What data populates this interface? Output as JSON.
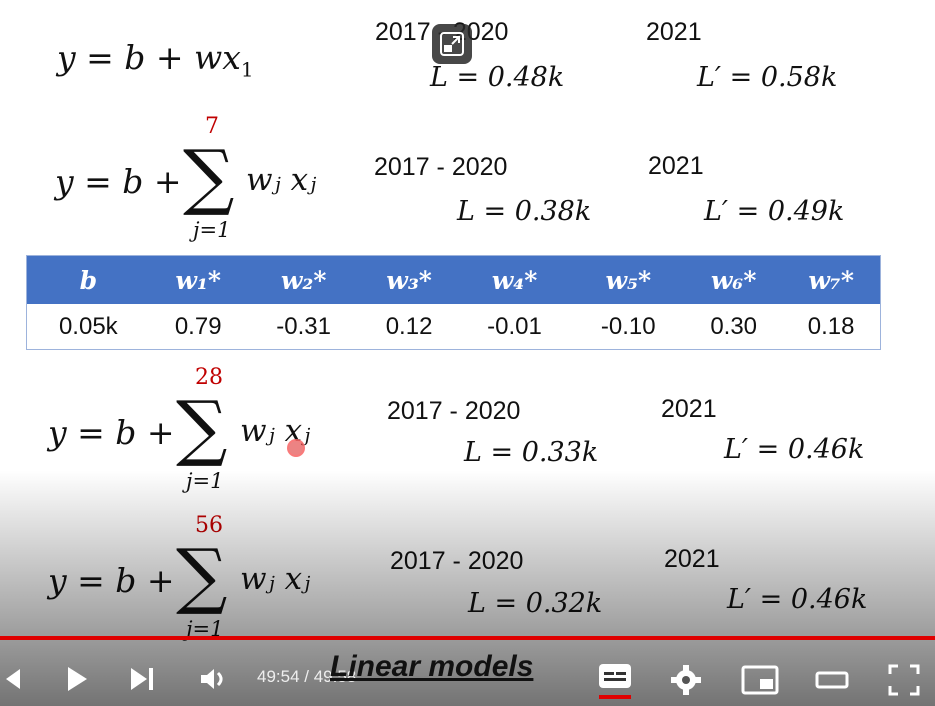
{
  "slide": {
    "models": [
      {
        "equation_lhs": "y = b + ",
        "equation_tail": "w",
        "equation_x": "x",
        "equation_sub": "1",
        "train_label": "2017 - 2020",
        "train_loss": "L = 0.48k",
        "test_label": "2021",
        "test_loss": "L′ = 0.58k"
      },
      {
        "equation_lhs": "y = b + ",
        "sum_upper": "7",
        "sum_lower": "j=1",
        "sum_term": "wⱼ xⱼ",
        "train_label": "2017 - 2020",
        "train_loss": "L = 0.38k",
        "test_label": "2021",
        "test_loss": "L′ = 0.49k"
      },
      {
        "equation_lhs": "y = b + ",
        "sum_upper": "28",
        "sum_lower": "j=1",
        "sum_term": "wⱼ xⱼ",
        "train_label": "2017 - 2020",
        "train_loss": "L = 0.33k",
        "test_label": "2021",
        "test_loss": "L′ = 0.46k"
      },
      {
        "equation_lhs": "y = b + ",
        "sum_upper": "56",
        "sum_lower": "j=1",
        "sum_term": "wⱼ xⱼ",
        "train_label": "2017 - 2020",
        "train_loss": "L = 0.32k",
        "test_label": "2021",
        "test_loss": "L′ = 0.46k"
      }
    ],
    "weights_table": {
      "headers": [
        "b",
        "w₁*",
        "w₂*",
        "w₃*",
        "w₄*",
        "w₅*",
        "w₆*",
        "w₇*"
      ],
      "values": [
        "0.05k",
        "0.79",
        "-0.31",
        "0.12",
        "-0.01",
        "-0.10",
        "0.30",
        "0.18"
      ]
    }
  },
  "player": {
    "time_display": "49:54 / 49:58",
    "chapter_title": "Linear models",
    "progress_fraction": 0.9987,
    "colors": {
      "progress": "#e00000",
      "table_header": "#4472c4",
      "sum_upper": "#c00000"
    },
    "icons": [
      "previous-icon",
      "play-icon",
      "next-icon",
      "volume-icon",
      "subtitles-icon",
      "settings-icon",
      "miniplayer-icon",
      "theater-icon",
      "fullscreen-icon",
      "pip-exit-icon"
    ]
  }
}
